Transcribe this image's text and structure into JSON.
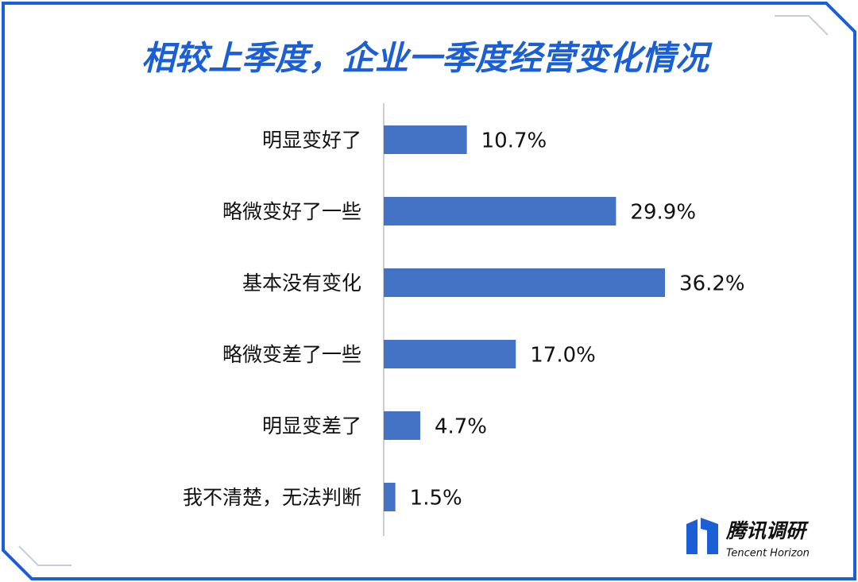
{
  "chart_data": {
    "type": "bar",
    "orientation": "horizontal",
    "title": "相较上季度，企业一季度经营变化情况",
    "categories": [
      "明显变好了",
      "略微变好了一些",
      "基本没有变化",
      "略微变差了一些",
      "明显变差了",
      "我不清楚，无法判断"
    ],
    "values": [
      10.7,
      29.9,
      36.2,
      17.0,
      4.7,
      1.5
    ],
    "value_labels": [
      "10.7%",
      "29.9%",
      "36.2%",
      "17.0%",
      "4.7%",
      "1.5%"
    ],
    "color": "#4472c4"
  },
  "logo": {
    "name": "腾讯调研",
    "subtitle": "Tencent Horizon"
  }
}
